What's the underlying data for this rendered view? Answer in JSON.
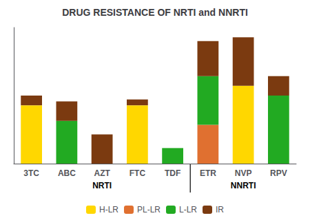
{
  "chart_data": {
    "type": "bar",
    "title": "DRUG RESISTANCE OF NRTI and NNRTI",
    "categories": [
      "3TC",
      "ABC",
      "AZT",
      "FTC",
      "TDF",
      "ETR",
      "NVP",
      "RPV"
    ],
    "series": [
      {
        "name": "H-LR",
        "color": "#FFD700",
        "values": [
          30,
          0,
          0,
          30,
          0,
          0,
          40,
          0
        ]
      },
      {
        "name": "PL-LR",
        "color": "#E07030",
        "values": [
          0,
          0,
          0,
          0,
          0,
          20,
          0,
          0
        ]
      },
      {
        "name": "L-LR",
        "color": "#22AA22",
        "values": [
          0,
          22,
          0,
          0,
          8,
          25,
          0,
          35
        ]
      },
      {
        "name": "IR",
        "color": "#7B3A10",
        "values": [
          5,
          10,
          15,
          3,
          0,
          18,
          25,
          10
        ]
      }
    ],
    "annotations": [
      {
        "text": "NRTI",
        "categories": [
          "3TC",
          "ABC",
          "AZT",
          "FTC",
          "TDF"
        ]
      },
      {
        "text": "NNRTI",
        "categories": [
          "ETR",
          "NVP",
          "RPV"
        ]
      }
    ],
    "ylim": [
      0,
      70
    ],
    "stacked": true,
    "grid": false,
    "legend": "bottom",
    "tick_labels": "x"
  }
}
